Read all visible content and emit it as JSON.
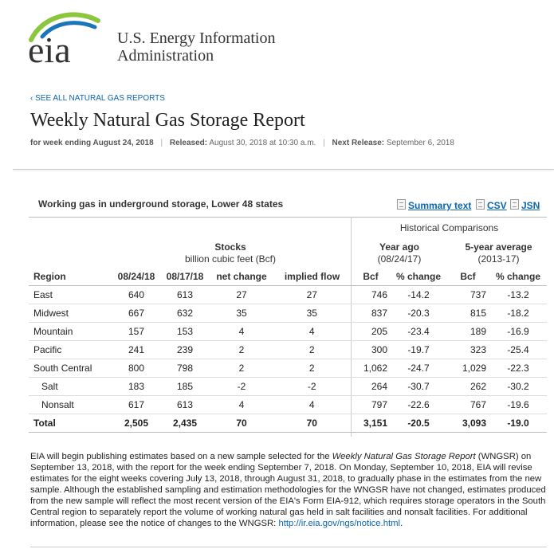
{
  "header": {
    "logo_text": "eia",
    "org_line1": "U.S. Energy Information",
    "org_line2": "Administration",
    "back_link": "‹ SEE ALL NATURAL GAS REPORTS",
    "title": "Weekly Natural Gas Storage Report",
    "week_label": "for week ending August 24, 2018",
    "released_label": "Released:",
    "released_value": "August 30, 2018 at 10:30 a.m.",
    "next_label": "Next Release:",
    "next_value": "September 6, 2018",
    "separator": "|"
  },
  "table": {
    "title": "Working gas in underground storage, Lower 48 states",
    "downloads": {
      "summary": "Summary text",
      "csv": "CSV",
      "json": "JSN"
    },
    "historical_label": "Historical Comparisons",
    "stocks_label": "Stocks",
    "stocks_units": "billion cubic feet (Bcf)",
    "year_ago_label": "Year ago",
    "year_ago_date": "(08/24/17)",
    "five_year_label": "5-year average",
    "five_year_range": "(2013-17)",
    "columns": [
      "Region",
      "08/24/18",
      "08/17/18",
      "net change",
      "implied flow",
      "Bcf",
      "% change",
      "Bcf",
      "% change"
    ],
    "rows": [
      {
        "region": "East",
        "v1": "640",
        "v2": "613",
        "net": "27",
        "flow": "27",
        "ya_bcf": "746",
        "ya_pct": "-14.2",
        "fy_bcf": "737",
        "fy_pct": "-13.2"
      },
      {
        "region": "Midwest",
        "v1": "667",
        "v2": "632",
        "net": "35",
        "flow": "35",
        "ya_bcf": "837",
        "ya_pct": "-20.3",
        "fy_bcf": "815",
        "fy_pct": "-18.2"
      },
      {
        "region": "Mountain",
        "v1": "157",
        "v2": "153",
        "net": "4",
        "flow": "4",
        "ya_bcf": "205",
        "ya_pct": "-23.4",
        "fy_bcf": "189",
        "fy_pct": "-16.9"
      },
      {
        "region": "Pacific",
        "v1": "241",
        "v2": "239",
        "net": "2",
        "flow": "2",
        "ya_bcf": "300",
        "ya_pct": "-19.7",
        "fy_bcf": "323",
        "fy_pct": "-25.4"
      },
      {
        "region": "South Central",
        "v1": "800",
        "v2": "798",
        "net": "2",
        "flow": "2",
        "ya_bcf": "1,062",
        "ya_pct": "-24.7",
        "fy_bcf": "1,029",
        "fy_pct": "-22.3"
      },
      {
        "region": "Salt",
        "v1": "183",
        "v2": "185",
        "net": "-2",
        "flow": "-2",
        "ya_bcf": "264",
        "ya_pct": "-30.7",
        "fy_bcf": "262",
        "fy_pct": "-30.2"
      },
      {
        "region": "Nonsalt",
        "v1": "617",
        "v2": "613",
        "net": "4",
        "flow": "4",
        "ya_bcf": "797",
        "ya_pct": "-22.6",
        "fy_bcf": "767",
        "fy_pct": "-19.6"
      },
      {
        "region": "Total",
        "v1": "2,505",
        "v2": "2,435",
        "net": "70",
        "flow": "70",
        "ya_bcf": "3,151",
        "ya_pct": "-20.5",
        "fy_bcf": "3,093",
        "fy_pct": "-19.0"
      }
    ]
  },
  "note": {
    "part1": "EIA will begin publishing estimates based on a new sample selected for the ",
    "italic": "Weekly Natural Gas Storage Report",
    "part2": " (WNGSR) on September 13, 2018, with the report for the week ending September 7, 2018. On Monday, September 10, 2018, EIA will revise estimates for the eight weeks covering July 13, 2018, through August 31, 2018, to gradually phase in the estimates from the new sample. Although the established sampling and estimation methodologies for the WNGSR have not changed, estimates produced from the new sample will reflect the most recent version of the EIA's Form EIA-912, which requires storage operators in the South Central region to separately report the volume of working natural gas held in salt facilities and nonsalt facilities. For additional information, please see the notice of changes to the WNGSR: ",
    "link": "http://ir.eia.gov/ngs/notice.html",
    "part3": "."
  },
  "colors": {
    "link": "#0a66b0",
    "logo_green": "#8cc63f",
    "logo_blue": "#1b75bb",
    "logo_text": "#333333"
  }
}
